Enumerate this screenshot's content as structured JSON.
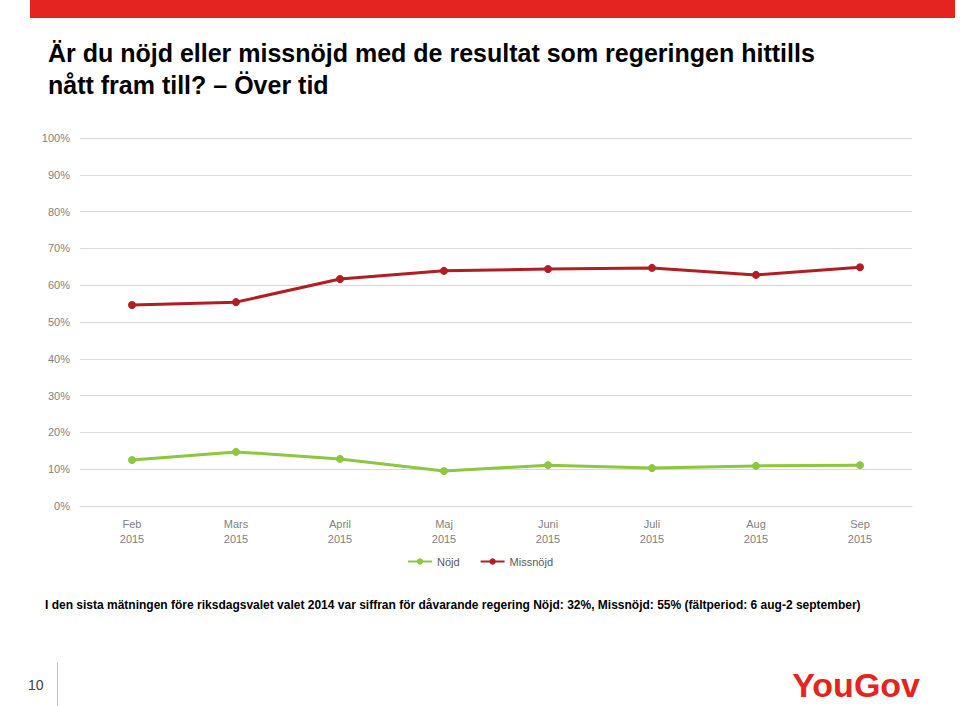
{
  "chart_data": {
    "type": "line",
    "title": "Är du nöjd eller missnöjd med de resultat som regeringen hittills\nnått fram till? – Över tid",
    "categories": [
      "Feb\n2015",
      "Mars\n2015",
      "April\n2015",
      "Maj\n2015",
      "Juni\n2015",
      "Juli\n2015",
      "Aug\n2015",
      "Sep\n2015"
    ],
    "series": [
      {
        "name": "Nöjd",
        "color": "#8dc63f",
        "marker": "circle",
        "values": [
          12.5,
          14.7,
          12.8,
          9.5,
          11.1,
          10.3,
          10.9,
          11.1
        ]
      },
      {
        "name": "Missnöjd",
        "color": "#b01e23",
        "marker": "circle",
        "values": [
          54.6,
          55.4,
          61.7,
          63.9,
          64.4,
          64.7,
          62.8,
          64.9
        ]
      }
    ],
    "ylim": [
      0,
      100
    ],
    "yticks": [
      {
        "value": 0,
        "label": "0%"
      },
      {
        "value": 10,
        "label": "10%"
      },
      {
        "value": 20,
        "label": "20%"
      },
      {
        "value": 30,
        "label": "30%"
      },
      {
        "value": 40,
        "label": "40%"
      },
      {
        "value": 50,
        "label": "50%"
      },
      {
        "value": 60,
        "label": "60%"
      },
      {
        "value": 70,
        "label": "70%"
      },
      {
        "value": 80,
        "label": "80%"
      },
      {
        "value": 90,
        "label": "90%"
      },
      {
        "value": 100,
        "label": "100%"
      }
    ],
    "grid": true,
    "legend": "bottom",
    "footnote": "I den sista mätningen före riksdagsvalet valet 2014 var siffran för dåvarande regering Nöjd: 32%, Missnöjd: 55% (fältperiod: 6 aug-2 september)",
    "page_number": "10",
    "logo": "YouGov"
  }
}
